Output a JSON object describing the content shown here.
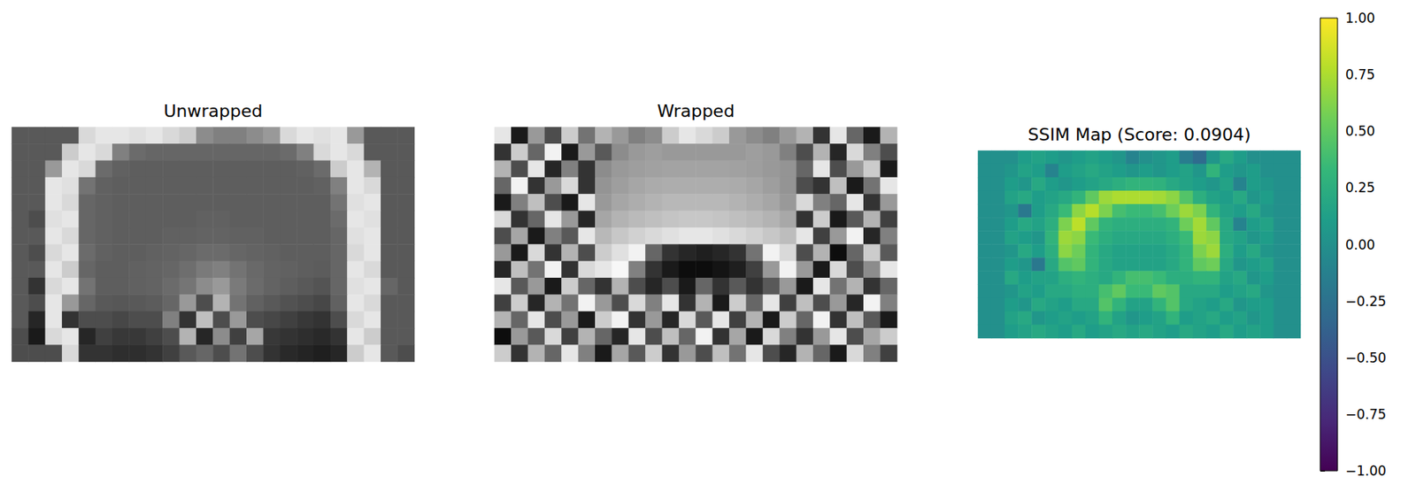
{
  "chart_data": [
    {
      "type": "heatmap",
      "title": "Unwrapped",
      "color": "gray",
      "tick_labels": false,
      "zlim": [
        0,
        1
      ],
      "cells": [
        [
          0.35,
          0.35,
          0.35,
          0.35,
          0.85,
          0.9,
          0.9,
          0.88,
          0.9,
          0.85,
          0.8,
          0.55,
          0.5,
          0.5,
          0.55,
          0.6,
          0.85,
          0.9,
          0.88,
          0.9,
          0.6,
          0.35,
          0.35,
          0.35
        ],
        [
          0.35,
          0.35,
          0.35,
          0.8,
          0.9,
          0.85,
          0.5,
          0.42,
          0.4,
          0.4,
          0.4,
          0.4,
          0.4,
          0.4,
          0.4,
          0.4,
          0.42,
          0.5,
          0.85,
          0.9,
          0.85,
          0.35,
          0.35,
          0.35
        ],
        [
          0.35,
          0.35,
          0.6,
          0.9,
          0.85,
          0.42,
          0.38,
          0.37,
          0.37,
          0.37,
          0.37,
          0.37,
          0.37,
          0.37,
          0.37,
          0.37,
          0.37,
          0.38,
          0.42,
          0.8,
          0.9,
          0.7,
          0.35,
          0.35
        ],
        [
          0.35,
          0.35,
          0.9,
          0.88,
          0.45,
          0.38,
          0.37,
          0.37,
          0.37,
          0.37,
          0.37,
          0.37,
          0.37,
          0.37,
          0.37,
          0.37,
          0.37,
          0.37,
          0.38,
          0.5,
          0.9,
          0.85,
          0.35,
          0.35
        ],
        [
          0.35,
          0.35,
          0.9,
          0.85,
          0.4,
          0.38,
          0.37,
          0.37,
          0.37,
          0.37,
          0.37,
          0.37,
          0.37,
          0.37,
          0.37,
          0.37,
          0.37,
          0.37,
          0.37,
          0.45,
          0.88,
          0.9,
          0.35,
          0.35
        ],
        [
          0.35,
          0.3,
          0.88,
          0.9,
          0.4,
          0.38,
          0.37,
          0.37,
          0.37,
          0.37,
          0.37,
          0.38,
          0.38,
          0.37,
          0.37,
          0.37,
          0.37,
          0.37,
          0.37,
          0.42,
          0.9,
          0.88,
          0.35,
          0.35
        ],
        [
          0.35,
          0.35,
          0.9,
          0.85,
          0.4,
          0.38,
          0.37,
          0.37,
          0.37,
          0.38,
          0.38,
          0.39,
          0.39,
          0.38,
          0.38,
          0.37,
          0.37,
          0.37,
          0.37,
          0.4,
          0.88,
          0.9,
          0.35,
          0.35
        ],
        [
          0.35,
          0.3,
          0.85,
          0.9,
          0.42,
          0.38,
          0.37,
          0.37,
          0.38,
          0.39,
          0.4,
          0.42,
          0.42,
          0.4,
          0.39,
          0.38,
          0.37,
          0.37,
          0.37,
          0.4,
          0.85,
          0.9,
          0.35,
          0.35
        ],
        [
          0.35,
          0.35,
          0.9,
          0.8,
          0.4,
          0.37,
          0.37,
          0.38,
          0.39,
          0.4,
          0.43,
          0.48,
          0.5,
          0.45,
          0.41,
          0.39,
          0.38,
          0.37,
          0.36,
          0.4,
          0.9,
          0.85,
          0.35,
          0.35
        ],
        [
          0.35,
          0.2,
          0.85,
          0.9,
          0.45,
          0.37,
          0.37,
          0.38,
          0.39,
          0.42,
          0.46,
          0.55,
          0.6,
          0.48,
          0.42,
          0.39,
          0.37,
          0.35,
          0.33,
          0.4,
          0.88,
          0.9,
          0.4,
          0.35
        ],
        [
          0.35,
          0.3,
          0.9,
          0.6,
          0.4,
          0.35,
          0.34,
          0.35,
          0.36,
          0.4,
          0.6,
          0.3,
          0.7,
          0.45,
          0.38,
          0.35,
          0.32,
          0.3,
          0.28,
          0.38,
          0.9,
          0.85,
          0.35,
          0.35
        ],
        [
          0.35,
          0.15,
          0.9,
          0.2,
          0.3,
          0.3,
          0.28,
          0.3,
          0.3,
          0.5,
          0.2,
          0.75,
          0.3,
          0.6,
          0.3,
          0.28,
          0.25,
          0.22,
          0.2,
          0.3,
          0.85,
          0.9,
          0.35,
          0.35
        ],
        [
          0.3,
          0.1,
          0.85,
          0.9,
          0.15,
          0.25,
          0.22,
          0.22,
          0.25,
          0.3,
          0.7,
          0.15,
          0.55,
          0.25,
          0.65,
          0.22,
          0.2,
          0.18,
          0.16,
          0.2,
          0.9,
          0.8,
          0.35,
          0.35
        ],
        [
          0.3,
          0.3,
          0.3,
          0.85,
          0.2,
          0.2,
          0.18,
          0.18,
          0.2,
          0.25,
          0.35,
          0.4,
          0.3,
          0.45,
          0.3,
          0.2,
          0.16,
          0.14,
          0.12,
          0.15,
          0.8,
          0.9,
          0.35,
          0.3
        ]
      ]
    },
    {
      "type": "heatmap",
      "title": "Wrapped",
      "color": "gray",
      "tick_labels": false,
      "zlim": [
        0,
        1
      ],
      "cells": [
        [
          0.9,
          0.1,
          0.6,
          0.3,
          0.8,
          0.45,
          0.7,
          0.6,
          0.5,
          0.55,
          0.8,
          0.9,
          0.85,
          0.8,
          0.6,
          0.55,
          0.5,
          0.6,
          0.7,
          0.2,
          0.9,
          0.4,
          0.1,
          0.7
        ],
        [
          0.2,
          0.8,
          0.4,
          0.95,
          0.1,
          0.6,
          0.35,
          0.55,
          0.6,
          0.62,
          0.6,
          0.6,
          0.6,
          0.6,
          0.6,
          0.62,
          0.6,
          0.5,
          0.3,
          0.7,
          0.15,
          0.85,
          0.5,
          0.3
        ],
        [
          0.7,
          0.3,
          0.9,
          0.15,
          0.5,
          0.2,
          0.55,
          0.6,
          0.62,
          0.63,
          0.64,
          0.64,
          0.64,
          0.64,
          0.63,
          0.62,
          0.6,
          0.58,
          0.4,
          0.9,
          0.3,
          0.6,
          0.8,
          0.1
        ],
        [
          0.4,
          0.95,
          0.2,
          0.6,
          0.85,
          0.2,
          0.58,
          0.62,
          0.65,
          0.67,
          0.68,
          0.68,
          0.68,
          0.68,
          0.67,
          0.65,
          0.62,
          0.58,
          0.3,
          0.2,
          0.75,
          0.1,
          0.45,
          0.9
        ],
        [
          0.1,
          0.5,
          0.75,
          0.3,
          0.1,
          0.9,
          0.6,
          0.65,
          0.68,
          0.7,
          0.72,
          0.72,
          0.72,
          0.72,
          0.7,
          0.68,
          0.65,
          0.6,
          0.85,
          0.5,
          0.4,
          0.9,
          0.2,
          0.6
        ],
        [
          0.85,
          0.2,
          0.4,
          0.9,
          0.6,
          0.15,
          0.65,
          0.7,
          0.73,
          0.75,
          0.77,
          0.78,
          0.78,
          0.77,
          0.75,
          0.73,
          0.7,
          0.66,
          0.2,
          0.8,
          0.1,
          0.35,
          0.7,
          0.25
        ],
        [
          0.3,
          0.65,
          0.1,
          0.5,
          0.35,
          0.9,
          0.72,
          0.78,
          0.82,
          0.85,
          0.88,
          0.9,
          0.9,
          0.88,
          0.85,
          0.82,
          0.78,
          0.74,
          0.9,
          0.25,
          0.6,
          0.95,
          0.15,
          0.5
        ],
        [
          0.6,
          0.1,
          0.85,
          0.2,
          0.7,
          0.3,
          0.8,
          0.88,
          0.95,
          0.4,
          0.2,
          0.15,
          0.12,
          0.15,
          0.2,
          0.45,
          0.95,
          0.85,
          0.3,
          0.7,
          0.05,
          0.4,
          0.8,
          0.35
        ],
        [
          0.15,
          0.75,
          0.45,
          0.95,
          0.2,
          0.85,
          0.9,
          0.97,
          0.5,
          0.2,
          0.1,
          0.05,
          0.05,
          0.08,
          0.12,
          0.25,
          0.6,
          0.95,
          0.6,
          0.1,
          0.85,
          0.3,
          0.55,
          0.9
        ],
        [
          0.9,
          0.35,
          0.6,
          0.1,
          0.8,
          0.4,
          0.2,
          0.7,
          0.3,
          0.15,
          0.3,
          0.1,
          0.4,
          0.2,
          0.35,
          0.2,
          0.35,
          0.6,
          0.1,
          0.9,
          0.45,
          0.7,
          0.2,
          0.4
        ],
        [
          0.25,
          0.8,
          0.15,
          0.7,
          0.45,
          0.95,
          0.6,
          0.3,
          0.85,
          0.5,
          0.9,
          0.2,
          0.7,
          0.1,
          0.8,
          0.4,
          0.9,
          0.25,
          0.75,
          0.3,
          0.6,
          0.15,
          0.95,
          0.5
        ],
        [
          0.7,
          0.4,
          0.9,
          0.3,
          0.6,
          0.1,
          0.8,
          0.95,
          0.2,
          0.6,
          0.15,
          0.85,
          0.35,
          0.9,
          0.25,
          0.7,
          0.1,
          0.8,
          0.4,
          0.95,
          0.2,
          0.75,
          0.35,
          0.1
        ],
        [
          0.05,
          0.6,
          0.35,
          0.85,
          0.25,
          0.7,
          0.4,
          0.15,
          0.9,
          0.3,
          0.75,
          0.4,
          0.95,
          0.2,
          0.65,
          0.1,
          0.85,
          0.5,
          0.2,
          0.6,
          0.9,
          0.3,
          0.65,
          0.8
        ],
        [
          0.8,
          0.2,
          0.7,
          0.4,
          0.9,
          0.5,
          0.1,
          0.65,
          0.35,
          0.8,
          0.2,
          0.6,
          0.3,
          0.75,
          0.45,
          0.9,
          0.3,
          0.15,
          0.7,
          0.4,
          0.1,
          0.85,
          0.5,
          0.25
        ]
      ]
    },
    {
      "type": "heatmap",
      "title": "SSIM Map (Score: 0.0904)",
      "color": "viridis",
      "tick_labels": false,
      "zlim": [
        -1,
        1
      ],
      "zticks": [
        {
          "value": -1,
          "label": "−1.00"
        },
        {
          "value": -0.75,
          "label": "−0.75"
        },
        {
          "value": -0.5,
          "label": "−0.50"
        },
        {
          "value": -0.25,
          "label": "−0.25"
        },
        {
          "value": 0,
          "label": "0.00"
        },
        {
          "value": 0.25,
          "label": "0.25"
        },
        {
          "value": 0.5,
          "label": "0.50"
        },
        {
          "value": 0.75,
          "label": "0.75"
        },
        {
          "value": 1,
          "label": "1.00"
        }
      ],
      "cells": [
        [
          0,
          0,
          0,
          0.1,
          0.15,
          0.1,
          0.05,
          0.1,
          0.15,
          0.1,
          0.05,
          -0.1,
          0,
          0.05,
          0.1,
          -0.15,
          -0.3,
          0.05,
          0.2,
          0.1,
          0,
          0,
          0,
          0
        ],
        [
          0,
          0,
          0.05,
          0.15,
          0.1,
          -0.1,
          0.1,
          0.15,
          0.2,
          0.15,
          0.1,
          0.05,
          0.1,
          0.05,
          0.1,
          0.15,
          0.05,
          0.3,
          0.1,
          0.05,
          0.1,
          0,
          0,
          0
        ],
        [
          0,
          0,
          0.1,
          0.05,
          0.2,
          0.1,
          0.05,
          0.1,
          0.15,
          0.2,
          0.25,
          0.3,
          0.3,
          0.28,
          0.2,
          0.15,
          0.1,
          0.05,
          0.15,
          -0.1,
          0.1,
          0.05,
          0,
          0
        ],
        [
          0,
          0,
          0.15,
          0.2,
          0.1,
          0.15,
          0.2,
          0.3,
          0.5,
          0.7,
          0.75,
          0.75,
          0.75,
          0.72,
          0.65,
          0.45,
          0.25,
          0.15,
          0.1,
          0.2,
          0.05,
          0.1,
          0,
          0
        ],
        [
          0,
          0,
          0.05,
          -0.2,
          0.1,
          0.2,
          0.35,
          0.65,
          0.78,
          0.6,
          0.4,
          0.35,
          0.35,
          0.4,
          0.55,
          0.7,
          0.6,
          0.3,
          0.15,
          0.1,
          0.2,
          0.05,
          0,
          0
        ],
        [
          0,
          0,
          0.1,
          0.2,
          0.15,
          0.25,
          0.6,
          0.8,
          0.5,
          0.3,
          0.25,
          0.25,
          0.25,
          0.25,
          0.3,
          0.55,
          0.72,
          0.5,
          0.2,
          -0.1,
          0.1,
          0.15,
          0,
          0
        ],
        [
          0,
          0,
          0.15,
          0.1,
          0.05,
          0.3,
          0.7,
          0.65,
          0.35,
          0.25,
          0.2,
          0.2,
          0.2,
          0.2,
          0.25,
          0.35,
          0.7,
          0.65,
          0.2,
          0.15,
          0.05,
          0.1,
          0,
          0
        ],
        [
          0,
          0,
          0.05,
          0.2,
          0.1,
          0.25,
          0.65,
          0.55,
          0.3,
          0.2,
          0.15,
          0.15,
          0.15,
          0.15,
          0.2,
          0.3,
          0.6,
          0.7,
          0.25,
          0.1,
          0.2,
          0.05,
          0,
          0
        ],
        [
          0,
          0,
          0.1,
          0.05,
          -0.2,
          0.2,
          0.45,
          0.5,
          0.3,
          0.2,
          0.15,
          0.15,
          0.15,
          0.15,
          0.2,
          0.3,
          0.5,
          0.55,
          0.2,
          0.05,
          0.1,
          0.15,
          0,
          0
        ],
        [
          0,
          0,
          0.2,
          0.1,
          0.15,
          0.15,
          0.25,
          0.3,
          0.25,
          0.2,
          0.3,
          0.4,
          0.4,
          0.35,
          0.25,
          0.25,
          0.3,
          0.3,
          0.15,
          0.2,
          0.05,
          0.1,
          0,
          0
        ],
        [
          0,
          0,
          0.05,
          0.15,
          0.1,
          0.2,
          0.2,
          0.25,
          0.25,
          0.4,
          0.5,
          0.35,
          0.35,
          0.5,
          0.45,
          0.2,
          0.2,
          0.2,
          0.1,
          0.15,
          0.2,
          0.05,
          0,
          0
        ],
        [
          0,
          0,
          0.1,
          0.05,
          0.2,
          0.15,
          0.1,
          0.2,
          0.2,
          0.45,
          0.3,
          0.15,
          0.15,
          0.3,
          0.45,
          0.2,
          0.15,
          0.1,
          0.2,
          0.05,
          0.1,
          0.1,
          0,
          0
        ],
        [
          0,
          0,
          0.15,
          0.2,
          0.05,
          0.1,
          0.15,
          0.1,
          0.15,
          0.3,
          0.15,
          0.05,
          0.1,
          0.15,
          0.3,
          0.1,
          0.15,
          0.2,
          0.1,
          0.15,
          0.05,
          0.1,
          0,
          0
        ],
        [
          0,
          0,
          0.1,
          0.15,
          0.2,
          0.15,
          0.1,
          0.2,
          0.1,
          0.15,
          0.2,
          0.15,
          0.2,
          0.15,
          0.1,
          0.2,
          0.15,
          0.1,
          0.2,
          0.1,
          0.15,
          0.1,
          0,
          0
        ]
      ]
    }
  ]
}
